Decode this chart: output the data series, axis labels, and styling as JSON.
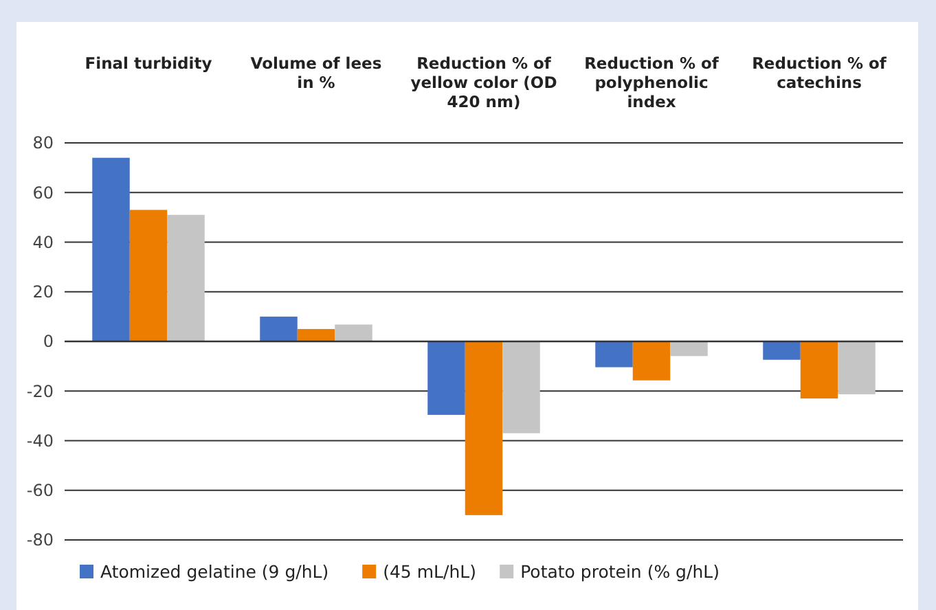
{
  "chart_data": {
    "type": "bar",
    "categories": [
      "Final turbidity",
      "Volume of lees in %",
      "Reduction % of yellow color (OD 420 nm)",
      "Reduction % of polyphenolic index",
      "Reduction % of catechins"
    ],
    "series": [
      {
        "name": "Atomized gelatine (9 g/hL)",
        "color": "#4472c4",
        "values": [
          74,
          10,
          -29.6,
          -10.4,
          -7.4
        ]
      },
      {
        "name": "(45 mL/hL)",
        "color": "#ed7d00",
        "values": [
          53,
          5,
          -70,
          -15.7,
          -23
        ]
      },
      {
        "name": "Potato protein (% g/hL)",
        "color": "#c5c5c5",
        "values": [
          51,
          6.8,
          -37,
          -5.9,
          -21.3
        ]
      }
    ],
    "ylim": [
      -80,
      80
    ],
    "yticks": [
      -80,
      -60,
      -40,
      -20,
      0,
      20,
      40,
      60,
      80
    ],
    "grid": "y",
    "legend": "bottom"
  }
}
